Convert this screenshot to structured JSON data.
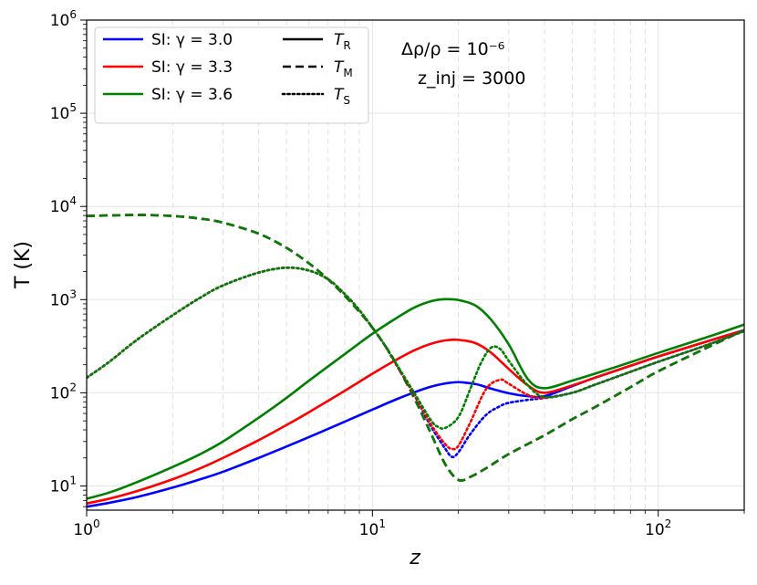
{
  "chart_data": {
    "type": "line",
    "xlabel": "z",
    "ylabel": "T (K)",
    "xscale": "log",
    "yscale": "log",
    "xlim": [
      1,
      200
    ],
    "ylim": [
      5.5,
      1000000
    ],
    "grid": true,
    "legend_position": "top-left",
    "x_ticks": [
      {
        "value": 1,
        "label": "10⁰"
      },
      {
        "value": 10,
        "label": "10¹"
      },
      {
        "value": 100,
        "label": "10²"
      }
    ],
    "y_ticks": [
      {
        "value": 10,
        "label": "10¹"
      },
      {
        "value": 100,
        "label": "10²"
      },
      {
        "value": 1000,
        "label": "10³"
      },
      {
        "value": 10000,
        "label": "10⁴"
      },
      {
        "value": 100000,
        "label": "10⁵"
      },
      {
        "value": 1000000,
        "label": "10⁶"
      }
    ],
    "legend_colors": [
      {
        "label": "SI: γ = 3.0",
        "color": "#0000ff"
      },
      {
        "label": "SI: γ = 3.3",
        "color": "#ff0000"
      },
      {
        "label": "SI: γ = 3.6",
        "color": "#008000"
      }
    ],
    "legend_styles": [
      {
        "label_main": "T",
        "label_sub": "R",
        "dash": "solid"
      },
      {
        "label_main": "T",
        "label_sub": "M",
        "dash": "dashed"
      },
      {
        "label_main": "T",
        "label_sub": "S",
        "dash": "dotted"
      }
    ],
    "annotations": {
      "line1": "Δρ/ρ = 10⁻⁶",
      "line2": "z_inj = 3000"
    },
    "series": [
      {
        "label": "SI: γ = 3.0, T_R",
        "color": "#0000ff",
        "dash": "solid",
        "x": [
          1,
          1.2,
          1.5,
          2,
          2.5,
          3,
          4,
          5,
          6,
          8,
          10,
          12,
          14,
          16,
          18,
          20,
          23,
          26,
          30,
          35,
          40,
          50,
          60,
          80,
          100,
          150,
          200
        ],
        "y": [
          6,
          6.6,
          7.6,
          9.6,
          11.8,
          14.2,
          20,
          26.5,
          33.5,
          49,
          66,
          84,
          101,
          116,
          126,
          130,
          124,
          111,
          99,
          92,
          92,
          118,
          145,
          195,
          245,
          360,
          470
        ]
      },
      {
        "label": "SI: γ = 3.3, T_R",
        "color": "#ff0000",
        "dash": "solid",
        "x": [
          1,
          1.2,
          1.5,
          2,
          2.5,
          3,
          4,
          5,
          6,
          8,
          10,
          12,
          14,
          16,
          18,
          20,
          23,
          26,
          30,
          35,
          40,
          50,
          60,
          80,
          100,
          150,
          200
        ],
        "y": [
          6.5,
          7.3,
          8.8,
          11.8,
          15.5,
          20,
          31,
          45,
          62,
          105,
          160,
          222,
          285,
          335,
          365,
          370,
          340,
          270,
          180,
          120,
          100,
          120,
          145,
          195,
          245,
          360,
          470
        ]
      },
      {
        "label": "SI: γ = 3.6, T_R",
        "color": "#008000",
        "dash": "solid",
        "x": [
          1,
          1.2,
          1.5,
          2,
          2.5,
          3,
          4,
          5,
          6,
          8,
          10,
          12,
          14,
          16,
          18,
          20,
          23,
          26,
          30,
          35,
          40,
          50,
          60,
          80,
          100,
          150,
          200
        ],
        "y": [
          7.3,
          8.5,
          11,
          16,
          22,
          30,
          54,
          88,
          135,
          260,
          430,
          620,
          820,
          960,
          1010,
          990,
          860,
          610,
          330,
          140,
          112,
          135,
          160,
          213,
          268,
          400,
          540
        ]
      },
      {
        "label": "T_M",
        "color": "#0000ff",
        "dash": "dashed",
        "x": [
          1,
          1.5,
          2,
          2.5,
          3,
          4,
          5,
          6,
          7,
          8,
          9,
          10,
          11,
          12,
          14,
          16,
          18,
          20,
          22,
          25,
          30,
          40,
          50,
          60,
          80,
          100,
          150,
          200
        ],
        "y": [
          7900,
          8100,
          7900,
          7400,
          6700,
          5100,
          3600,
          2450,
          1650,
          1100,
          740,
          500,
          330,
          215,
          88,
          37,
          17,
          11.6,
          12.5,
          15.5,
          22,
          35,
          52,
          70,
          115,
          170,
          310,
          470
        ]
      },
      {
        "label": "T_M",
        "color": "#ff0000",
        "dash": "dashed",
        "x": [
          1,
          1.5,
          2,
          2.5,
          3,
          4,
          5,
          6,
          7,
          8,
          9,
          10,
          11,
          12,
          14,
          16,
          18,
          20,
          22,
          25,
          30,
          40,
          50,
          60,
          80,
          100,
          150,
          200
        ],
        "y": [
          7900,
          8100,
          7900,
          7400,
          6700,
          5100,
          3600,
          2450,
          1650,
          1100,
          740,
          500,
          330,
          215,
          88,
          37,
          17,
          11.6,
          12.5,
          15.5,
          22,
          35,
          52,
          70,
          115,
          170,
          310,
          470
        ]
      },
      {
        "label": "T_M",
        "color": "#008000",
        "dash": "dashed",
        "x": [
          1,
          1.5,
          2,
          2.5,
          3,
          4,
          5,
          6,
          7,
          8,
          9,
          10,
          11,
          12,
          14,
          16,
          18,
          20,
          22,
          25,
          30,
          40,
          50,
          60,
          80,
          100,
          150,
          200
        ],
        "y": [
          7900,
          8100,
          7900,
          7400,
          6700,
          5100,
          3600,
          2450,
          1650,
          1100,
          740,
          500,
          330,
          215,
          88,
          37,
          17,
          11.6,
          12.5,
          15.5,
          22,
          35,
          52,
          70,
          115,
          170,
          310,
          470
        ]
      },
      {
        "label": "SI: γ = 3.0, T_S",
        "color": "#0000ff",
        "dash": "dotted",
        "x": [
          1,
          1.2,
          1.5,
          2,
          2.5,
          3,
          4,
          5,
          6,
          7,
          8,
          9,
          10,
          11,
          12,
          14,
          16,
          18,
          19,
          20,
          22,
          25,
          28,
          30,
          35,
          40,
          50,
          60,
          80,
          100,
          150,
          200
        ],
        "y": [
          145,
          215,
          370,
          680,
          1050,
          1420,
          1950,
          2200,
          2050,
          1650,
          1150,
          770,
          500,
          330,
          210,
          95,
          44,
          25,
          20.5,
          23,
          36,
          58,
          72,
          78,
          84,
          88,
          100,
          122,
          168,
          215,
          330,
          460
        ]
      },
      {
        "label": "SI: γ = 3.3, T_S",
        "color": "#ff0000",
        "dash": "dotted",
        "x": [
          1,
          1.2,
          1.5,
          2,
          2.5,
          3,
          4,
          5,
          6,
          7,
          8,
          9,
          10,
          11,
          12,
          14,
          16,
          18,
          19,
          20,
          22,
          25,
          28,
          30,
          35,
          40,
          50,
          60,
          80,
          100,
          150,
          200
        ],
        "y": [
          145,
          215,
          370,
          680,
          1050,
          1420,
          1950,
          2200,
          2050,
          1650,
          1150,
          770,
          500,
          330,
          210,
          96,
          46,
          28,
          25,
          27,
          48,
          110,
          138,
          125,
          95,
          88,
          100,
          122,
          168,
          215,
          330,
          460
        ]
      },
      {
        "label": "SI: γ = 3.6, T_S",
        "color": "#008000",
        "dash": "dotted",
        "x": [
          1,
          1.2,
          1.5,
          2,
          2.5,
          3,
          4,
          5,
          6,
          7,
          8,
          9,
          10,
          11,
          12,
          14,
          16,
          17,
          18,
          20,
          22,
          24,
          26,
          28,
          30,
          35,
          40,
          50,
          60,
          80,
          100,
          150,
          200
        ],
        "y": [
          145,
          215,
          370,
          680,
          1050,
          1420,
          1950,
          2200,
          2050,
          1650,
          1150,
          770,
          500,
          330,
          215,
          100,
          51,
          43,
          42,
          55,
          110,
          210,
          305,
          295,
          220,
          120,
          90,
          100,
          122,
          168,
          215,
          330,
          460
        ]
      }
    ]
  }
}
